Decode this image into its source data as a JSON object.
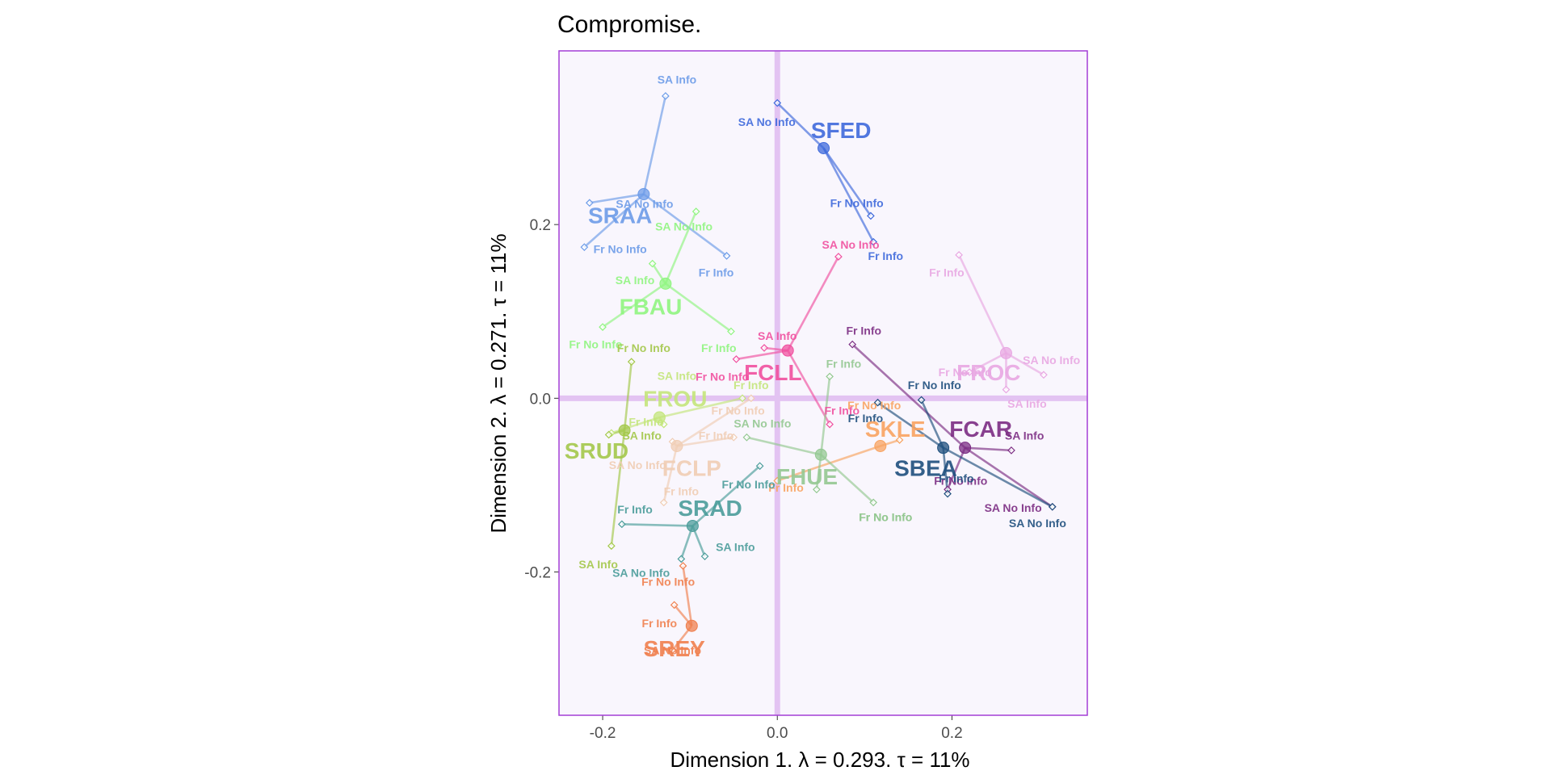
{
  "chart_data": {
    "type": "scatter",
    "title": "Compromise.",
    "xlabel": "Dimension 1.   λ = 0.293.  τ = 11%",
    "ylabel": "Dimension 2.   λ = 0.271.  τ = 11%",
    "xlim": [
      -0.25,
      0.355
    ],
    "ylim": [
      -0.365,
      0.4
    ],
    "xticks": [
      -0.2,
      0.0,
      0.2
    ],
    "xtick_labels": [
      "-0.2",
      "0.0",
      "0.2"
    ],
    "yticks": [
      -0.2,
      0.0,
      0.2
    ],
    "ytick_labels": [
      "-0.2",
      "0.0",
      "0.2"
    ],
    "grid": false,
    "background": "#f9f6fd",
    "panel_border": "#a43fd6",
    "origin_lines_color": "#e3c3f2",
    "groups": [
      {
        "name": "SFED",
        "color": "#3e69db",
        "center": [
          0.053,
          0.288
        ],
        "label_pos": [
          0.073,
          0.309
        ],
        "points": [
          {
            "label": "SA No Info",
            "x": 0.0,
            "y": 0.34,
            "lx": -0.012,
            "ly": 0.318
          },
          {
            "label": "Fr No Info",
            "x": 0.107,
            "y": 0.21,
            "lx": 0.091,
            "ly": 0.225
          },
          {
            "label": "Fr Info",
            "x": 0.11,
            "y": 0.18,
            "lx": 0.124,
            "ly": 0.164
          }
        ]
      },
      {
        "name": "SRAA",
        "color": "#6c9be8",
        "center": [
          -0.153,
          0.235
        ],
        "label_pos": [
          -0.18,
          0.211
        ],
        "points": [
          {
            "label": "SA Info",
            "x": -0.128,
            "y": 0.348,
            "lx": -0.115,
            "ly": 0.367
          },
          {
            "label": "SA No Info",
            "x": -0.215,
            "y": 0.225,
            "lx": -0.152,
            "ly": 0.224
          },
          {
            "label": "Fr No Info",
            "x": -0.221,
            "y": 0.174,
            "lx": -0.18,
            "ly": 0.172
          },
          {
            "label": "Fr Info",
            "x": -0.058,
            "y": 0.164,
            "lx": -0.07,
            "ly": 0.145
          }
        ]
      },
      {
        "name": "FBAU",
        "color": "#8ff57f",
        "center": [
          -0.128,
          0.132
        ],
        "label_pos": [
          -0.145,
          0.106
        ],
        "points": [
          {
            "label": "SA No Info",
            "x": -0.093,
            "y": 0.215,
            "lx": -0.107,
            "ly": 0.198
          },
          {
            "label": "SA Info",
            "x": -0.143,
            "y": 0.155,
            "lx": -0.163,
            "ly": 0.136
          },
          {
            "label": "Fr No Info",
            "x": -0.2,
            "y": 0.082,
            "lx": -0.208,
            "ly": 0.062
          },
          {
            "label": "Fr Info",
            "x": -0.053,
            "y": 0.077,
            "lx": -0.067,
            "ly": 0.058
          }
        ]
      },
      {
        "name": "FCLL",
        "color": "#f0509f",
        "center": [
          0.012,
          0.055
        ],
        "label_pos": [
          -0.005,
          0.03
        ],
        "points": [
          {
            "label": "SA No Info",
            "x": 0.07,
            "y": 0.163,
            "lx": 0.084,
            "ly": 0.177
          },
          {
            "label": "SA Info",
            "x": -0.015,
            "y": 0.058,
            "lx": 0.0,
            "ly": 0.072
          },
          {
            "label": "Fr No Info",
            "x": -0.047,
            "y": 0.045,
            "lx": -0.063,
            "ly": 0.025
          },
          {
            "label": "Fr Info",
            "x": 0.06,
            "y": -0.03,
            "lx": 0.074,
            "ly": -0.014
          }
        ]
      },
      {
        "name": "FROC",
        "color": "#e8a7e2",
        "center": [
          0.262,
          0.052
        ],
        "label_pos": [
          0.242,
          0.03
        ],
        "points": [
          {
            "label": "Fr Info",
            "x": 0.208,
            "y": 0.165,
            "lx": 0.194,
            "ly": 0.145
          },
          {
            "label": "SA No Info",
            "x": 0.305,
            "y": 0.027,
            "lx": 0.314,
            "ly": 0.044
          },
          {
            "label": "Fr No Info",
            "x": 0.22,
            "y": 0.03,
            "lx": 0.215,
            "ly": 0.03
          },
          {
            "label": "SA Info",
            "x": 0.262,
            "y": 0.01,
            "lx": 0.286,
            "ly": -0.006
          }
        ]
      },
      {
        "name": "FCAR",
        "color": "#7b2c83",
        "center": [
          0.215,
          -0.057
        ],
        "label_pos": [
          0.233,
          -0.035
        ],
        "points": [
          {
            "label": "Fr Info",
            "x": 0.086,
            "y": 0.062,
            "lx": 0.099,
            "ly": 0.078
          },
          {
            "label": "SA Info",
            "x": 0.268,
            "y": -0.06,
            "lx": 0.283,
            "ly": -0.043
          },
          {
            "label": "Fr No Info",
            "x": 0.195,
            "y": -0.105,
            "lx": 0.21,
            "ly": -0.095
          },
          {
            "label": "SA No Info",
            "x": 0.315,
            "y": -0.125,
            "lx": 0.27,
            "ly": -0.126
          }
        ]
      },
      {
        "name": "SBEA",
        "color": "#1e4f7d",
        "center": [
          0.19,
          -0.057
        ],
        "label_pos": [
          0.17,
          -0.08
        ],
        "points": [
          {
            "label": "Fr No Info",
            "x": 0.165,
            "y": -0.002,
            "lx": 0.18,
            "ly": 0.015
          },
          {
            "label": "Fr Info",
            "x": 0.115,
            "y": -0.005,
            "lx": 0.101,
            "ly": -0.023
          },
          {
            "label": "Fr Info",
            "x": 0.195,
            "y": -0.11,
            "lx": 0.205,
            "ly": -0.092
          },
          {
            "label": "SA No Info",
            "x": 0.315,
            "y": -0.125,
            "lx": 0.298,
            "ly": -0.144
          }
        ]
      },
      {
        "name": "SKLE",
        "color": "#f8a360",
        "center": [
          0.118,
          -0.055
        ],
        "label_pos": [
          0.135,
          -0.035
        ],
        "points": [
          {
            "label": "Fr No Info",
            "x": 0.14,
            "y": -0.048,
            "lx": 0.111,
            "ly": -0.008
          },
          {
            "label": "Fr Info",
            "x": 0.0,
            "y": -0.095,
            "lx": 0.01,
            "ly": -0.103
          }
        ]
      },
      {
        "name": "FHUE",
        "color": "#93c891",
        "center": [
          0.05,
          -0.065
        ],
        "label_pos": [
          0.034,
          -0.09
        ],
        "points": [
          {
            "label": "Fr Info",
            "x": 0.06,
            "y": 0.025,
            "lx": 0.076,
            "ly": 0.04
          },
          {
            "label": "SA No Info",
            "x": -0.035,
            "y": -0.045,
            "lx": -0.017,
            "ly": -0.029
          },
          {
            "label": "Fr No Info",
            "x": 0.045,
            "y": -0.105,
            "lx": 0.124,
            "ly": -0.137
          },
          {
            "label": "Fr No Info",
            "x": 0.11,
            "y": -0.12,
            "lx": 0.124,
            "ly": -0.137
          }
        ]
      },
      {
        "name": "FROU",
        "color": "#c3e57b",
        "center": [
          -0.135,
          -0.022
        ],
        "label_pos": [
          -0.117,
          0.0
        ],
        "points": [
          {
            "label": "SA Info",
            "x": -0.19,
            "y": -0.04,
            "lx": -0.115,
            "ly": 0.026
          },
          {
            "label": "Fr Info",
            "x": -0.04,
            "y": 0.0,
            "lx": -0.03,
            "ly": 0.015
          },
          {
            "label": "Fr Info",
            "x": -0.13,
            "y": -0.03,
            "lx": -0.15,
            "ly": -0.027
          }
        ]
      },
      {
        "name": "SRUD",
        "color": "#a3c84a",
        "center": [
          -0.175,
          -0.037
        ],
        "label_pos": [
          -0.207,
          -0.06
        ],
        "points": [
          {
            "label": "Fr No Info",
            "x": -0.167,
            "y": 0.042,
            "lx": -0.153,
            "ly": 0.058
          },
          {
            "label": "SA Info",
            "x": -0.193,
            "y": -0.042,
            "lx": -0.155,
            "ly": -0.043
          },
          {
            "label": "SA Info",
            "x": -0.19,
            "y": -0.17,
            "lx": -0.205,
            "ly": -0.191
          }
        ]
      },
      {
        "name": "FCLP",
        "color": "#f0cdb4",
        "center": [
          -0.115,
          -0.055
        ],
        "label_pos": [
          -0.098,
          -0.08
        ],
        "points": [
          {
            "label": "Fr No Info",
            "x": -0.03,
            "y": 0.0,
            "lx": -0.045,
            "ly": -0.014
          },
          {
            "label": "Fr Info",
            "x": -0.05,
            "y": -0.045,
            "lx": -0.07,
            "ly": -0.043
          },
          {
            "label": "SA No Info",
            "x": -0.12,
            "y": -0.05,
            "lx": -0.16,
            "ly": -0.077
          },
          {
            "label": "Fr Info",
            "x": -0.13,
            "y": -0.12,
            "lx": -0.11,
            "ly": -0.107
          }
        ]
      },
      {
        "name": "SRAD",
        "color": "#4a9c9a",
        "center": [
          -0.097,
          -0.147
        ],
        "label_pos": [
          -0.077,
          -0.126
        ],
        "points": [
          {
            "label": "Fr No Info",
            "x": -0.02,
            "y": -0.078,
            "lx": -0.033,
            "ly": -0.099
          },
          {
            "label": "Fr Info",
            "x": -0.178,
            "y": -0.145,
            "lx": -0.163,
            "ly": -0.128
          },
          {
            "label": "SA Info",
            "x": -0.083,
            "y": -0.182,
            "lx": -0.048,
            "ly": -0.171
          },
          {
            "label": "SA No Info",
            "x": -0.11,
            "y": -0.185,
            "lx": -0.156,
            "ly": -0.201
          }
        ]
      },
      {
        "name": "SREY",
        "color": "#ef7f4e",
        "center": [
          -0.098,
          -0.262
        ],
        "label_pos": [
          -0.118,
          -0.288
        ],
        "points": [
          {
            "label": "Fr No Info",
            "x": -0.108,
            "y": -0.193,
            "lx": -0.125,
            "ly": -0.211
          },
          {
            "label": "Fr Info",
            "x": -0.118,
            "y": -0.238,
            "lx": -0.135,
            "ly": -0.259
          },
          {
            "label": "SA No Info",
            "x": -0.12,
            "y": -0.29,
            "lx": -0.12,
            "ly": -0.29
          }
        ]
      }
    ]
  }
}
